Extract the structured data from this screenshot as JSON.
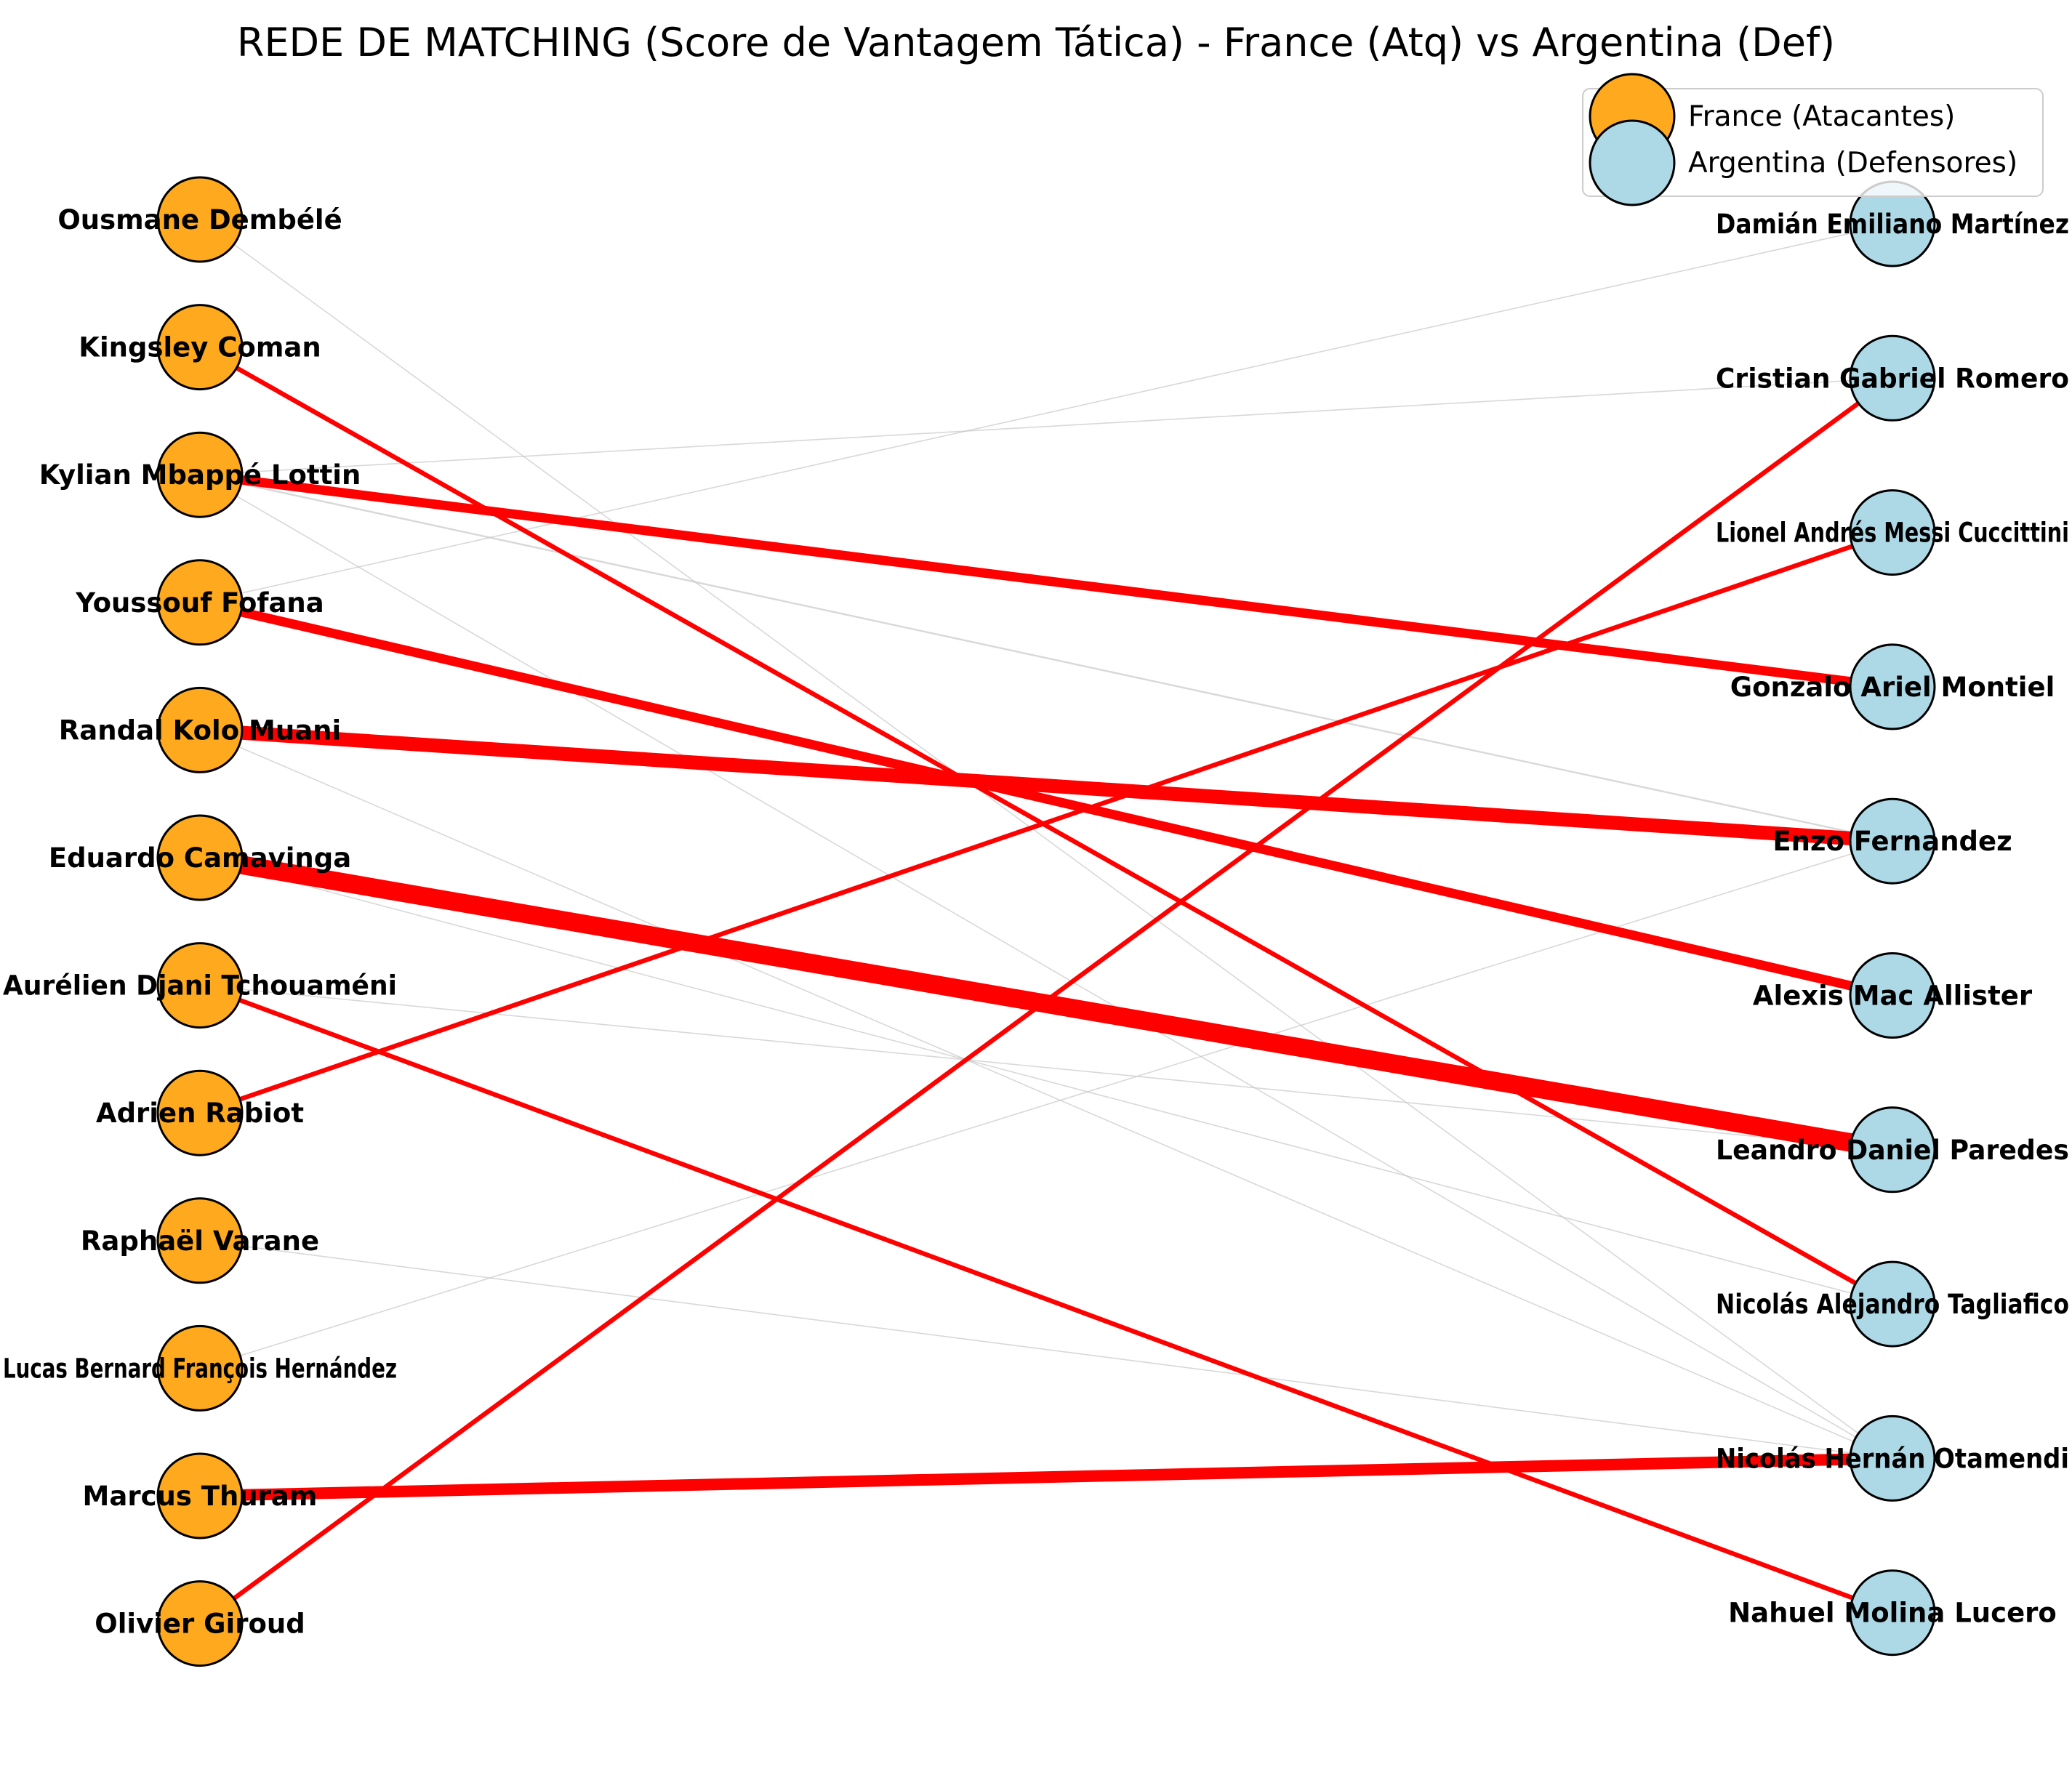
{
  "title": "REDE DE MATCHING (Score de Vantagem Tática) - France (Atq) vs Argentina (Def)",
  "colors": {
    "attacker": "#FFA91E",
    "defender": "#ADD8E6",
    "strong_edge": "#FF0000",
    "weak_edge": "#C8C8C8"
  },
  "legend": {
    "attackers": "France (Atacantes)",
    "defenders": "Argentina (Defensores)"
  },
  "attackers": [
    "Ousmane Dembélé",
    "Kingsley Coman",
    "Kylian Mbappé Lottin",
    "Youssouf Fofana",
    "Randal Kolo Muani",
    "Eduardo Camavinga",
    "Aurélien Djani Tchouaméni",
    "Adrien Rabiot",
    "Raphaël Varane",
    "Lucas Bernard François Hernández",
    "Marcus Thuram",
    "Olivier Giroud"
  ],
  "defenders": [
    "Damián Emiliano Martínez",
    "Cristian Gabriel Romero",
    "Lionel Andrés Messi Cuccittini",
    "Gonzalo Ariel Montiel",
    "Enzo Fernandez",
    "Alexis Mac Allister",
    "Leandro Daniel Paredes",
    "Nicolás Alejandro Tagliafico",
    "Nicolás Hernán Otamendi",
    "Nahuel Molina Lucero"
  ],
  "edges": [
    {
      "from": "Kingsley Coman",
      "to": "Nicolás Alejandro Tagliafico",
      "weight": 2,
      "highlight": true
    },
    {
      "from": "Kylian Mbappé Lottin",
      "to": "Gonzalo Ariel Montiel",
      "weight": 4,
      "highlight": true
    },
    {
      "from": "Youssouf Fofana",
      "to": "Alexis Mac Allister",
      "weight": 4,
      "highlight": true
    },
    {
      "from": "Randal Kolo Muani",
      "to": "Enzo Fernandez",
      "weight": 6,
      "highlight": true
    },
    {
      "from": "Eduardo Camavinga",
      "to": "Leandro Daniel Paredes",
      "weight": 8,
      "highlight": true
    },
    {
      "from": "Aurélien Djani Tchouaméni",
      "to": "Nahuel Molina Lucero",
      "weight": 2,
      "highlight": true
    },
    {
      "from": "Adrien Rabiot",
      "to": "Lionel Andrés Messi Cuccittini",
      "weight": 2,
      "highlight": true
    },
    {
      "from": "Marcus Thuram",
      "to": "Nicolás Hernán Otamendi",
      "weight": 5,
      "highlight": true
    },
    {
      "from": "Olivier Giroud",
      "to": "Cristian Gabriel Romero",
      "weight": 2,
      "highlight": true
    },
    {
      "from": "Ousmane Dembélé",
      "to": "Nicolás Hernán Otamendi",
      "weight": 1,
      "highlight": false
    },
    {
      "from": "Kylian Mbappé Lottin",
      "to": "Cristian Gabriel Romero",
      "weight": 1,
      "highlight": false
    },
    {
      "from": "Kylian Mbappé Lottin",
      "to": "Enzo Fernandez",
      "weight": 1.5,
      "highlight": false
    },
    {
      "from": "Kylian Mbappé Lottin",
      "to": "Nicolás Hernán Otamendi",
      "weight": 1,
      "highlight": false
    },
    {
      "from": "Youssouf Fofana",
      "to": "Damián Emiliano Martínez",
      "weight": 1,
      "highlight": false
    },
    {
      "from": "Randal Kolo Muani",
      "to": "Nicolás Hernán Otamendi",
      "weight": 1,
      "highlight": false
    },
    {
      "from": "Eduardo Camavinga",
      "to": "Nicolás Alejandro Tagliafico",
      "weight": 1,
      "highlight": false
    },
    {
      "from": "Aurélien Djani Tchouaméni",
      "to": "Leandro Daniel Paredes",
      "weight": 1,
      "highlight": false
    },
    {
      "from": "Raphaël Varane",
      "to": "Nicolás Hernán Otamendi",
      "weight": 1,
      "highlight": false
    },
    {
      "from": "Lucas Bernard François Hernández",
      "to": "Enzo Fernandez",
      "weight": 1,
      "highlight": false
    }
  ]
}
